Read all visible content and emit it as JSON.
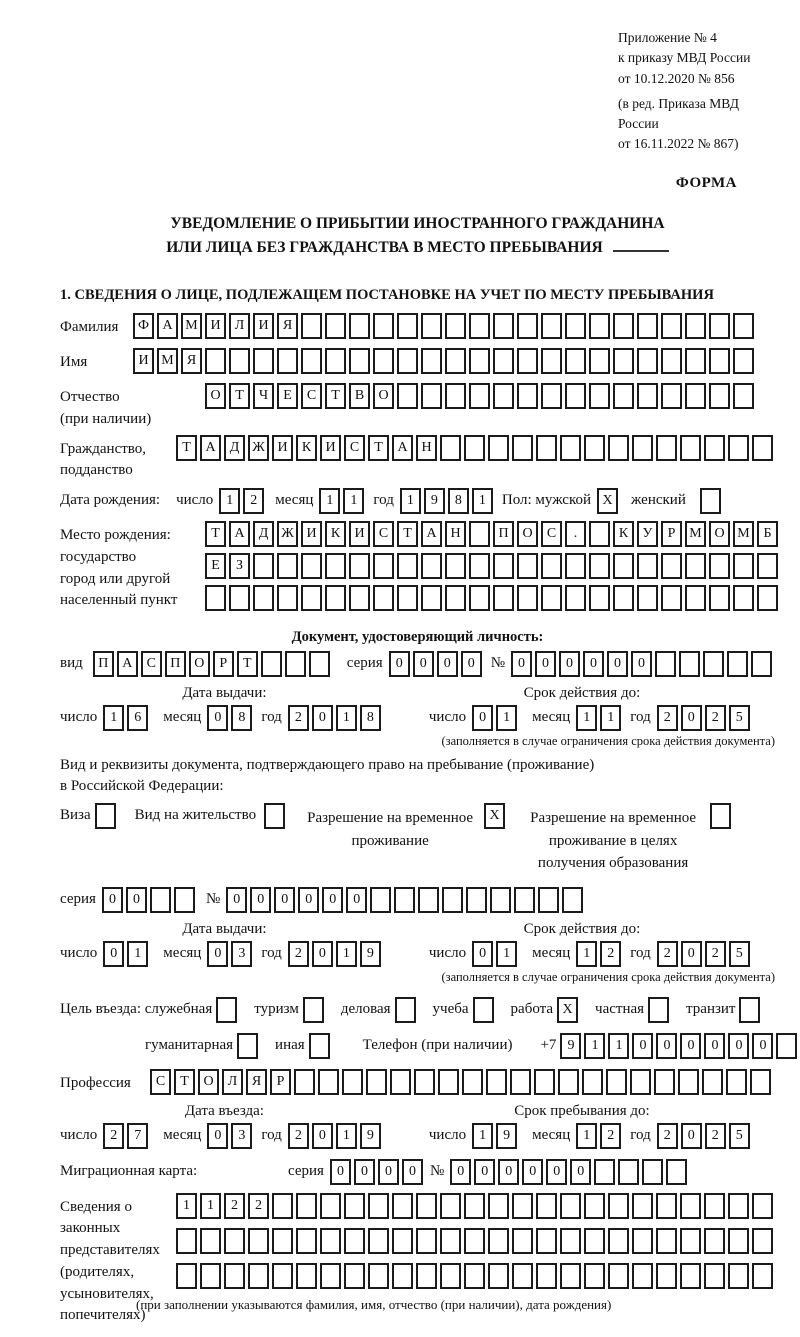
{
  "header": {
    "line1": "Приложение № 4",
    "line2": "к приказу МВД России",
    "line3": "от 10.12.2020 № 856",
    "line4": "(в ред. Приказа МВД России",
    "line5": "от 16.11.2022 № 867)",
    "form_label": "ФОРМА"
  },
  "title": {
    "line1": "УВЕДОМЛЕНИЕ О ПРИБЫТИИ ИНОСТРАННОГО ГРАЖДАНИНА",
    "line2": "ИЛИ ЛИЦА БЕЗ ГРАЖДАНСТВА В МЕСТО ПРЕБЫВАНИЯ"
  },
  "section1_heading": "1. СВЕДЕНИЯ О ЛИЦЕ, ПОДЛЕЖАЩЕМ ПОСТАНОВКЕ НА УЧЕТ ПО МЕСТУ ПРЕБЫВАНИЯ",
  "date_labels": {
    "day": "число",
    "month": "месяц",
    "year": "год"
  },
  "person": {
    "surname": {
      "label": "Фамилия",
      "cells": {
        "v": "ФАМИЛИЯ",
        "n": 26
      }
    },
    "name": {
      "label": "Имя",
      "cells": {
        "v": "ИМЯ",
        "n": 26
      }
    },
    "patronymic": {
      "label1": "Отчество",
      "label2": "(при наличии)",
      "cells": {
        "v": "ОТЧЕСТВО",
        "n": 23
      }
    },
    "citizenship": {
      "label1": "Гражданство,",
      "label2": "подданство",
      "cells": {
        "v": "ТАДЖИКИСТАН",
        "n": 25
      }
    },
    "birth_date": {
      "label": "Дата рождения:",
      "day": {
        "v": "12",
        "n": 2
      },
      "month": {
        "v": "11",
        "n": 2
      },
      "year": {
        "v": "1981",
        "n": 4
      }
    },
    "sex": {
      "label": "Пол: мужской",
      "male": {
        "v": "X",
        "n": 1
      },
      "female_label": "женский",
      "female": {
        "v": "",
        "n": 1
      }
    },
    "birth_place": {
      "label1": "Место рождения:",
      "label2": "государство",
      "label3": "город или другой",
      "label4": "населенный пункт",
      "row1": {
        "v": "ТАДЖИКИСТАН ПОС. КУРМОМБ",
        "n": 24
      },
      "row2": {
        "v": "ЕЗ",
        "n": 24
      },
      "row3": {
        "v": "",
        "n": 24
      }
    }
  },
  "identity_doc": {
    "heading": "Документ, удостоверяющий личность:",
    "kind_label": "вид",
    "kind": {
      "v": "ПАСПОРТ",
      "n": 10
    },
    "series_label": "серия",
    "series": {
      "v": "0000",
      "n": 4
    },
    "number_label": "№",
    "number": {
      "v": "000000",
      "n": 11
    },
    "issue_heading": "Дата выдачи:",
    "issue": {
      "day": {
        "v": "16",
        "n": 2
      },
      "month": {
        "v": "08",
        "n": 2
      },
      "year": {
        "v": "2018",
        "n": 4
      }
    },
    "expiry_heading": "Срок действия до:",
    "expiry": {
      "day": {
        "v": "01",
        "n": 2
      },
      "month": {
        "v": "11",
        "n": 2
      },
      "year": {
        "v": "2025",
        "n": 4
      }
    },
    "expiry_note": "(заполняется в случае ограничения срока действия документа)"
  },
  "stay_doc": {
    "intro1": "Вид и реквизиты документа, подтверждающего право на пребывание (проживание)",
    "intro2": "в Российской Федерации:",
    "visa_label": "Виза",
    "visa": {
      "v": "",
      "n": 1
    },
    "residence_permit_label": "Вид на жительство",
    "residence_permit": {
      "v": "",
      "n": 1
    },
    "temp_residence_label": "Разрешение на временное проживание",
    "temp_residence": {
      "v": "X",
      "n": 1
    },
    "temp_residence_edu_label": "Разрешение на временное проживание в целях получения образования",
    "temp_residence_edu": {
      "v": "",
      "n": 1
    },
    "series_label": "серия",
    "series": {
      "v": "00",
      "n": 4
    },
    "number_label": "№",
    "number": {
      "v": "000000",
      "n": 15
    },
    "issue_heading": "Дата выдачи:",
    "issue": {
      "day": {
        "v": "01",
        "n": 2
      },
      "month": {
        "v": "03",
        "n": 2
      },
      "year": {
        "v": "2019",
        "n": 4
      }
    },
    "expiry_heading": "Срок действия до:",
    "expiry": {
      "day": {
        "v": "01",
        "n": 2
      },
      "month": {
        "v": "12",
        "n": 2
      },
      "year": {
        "v": "2025",
        "n": 4
      }
    },
    "expiry_note": "(заполняется в случае ограничения срока действия документа)"
  },
  "visit": {
    "purpose_label": "Цель въезда: служебная",
    "purposes": [
      {
        "label": "служебная",
        "box": {
          "v": "",
          "n": 1
        }
      },
      {
        "label": "туризм",
        "box": {
          "v": "",
          "n": 1
        }
      },
      {
        "label": "деловая",
        "box": {
          "v": "",
          "n": 1
        }
      },
      {
        "label": "учеба",
        "box": {
          "v": "",
          "n": 1
        }
      },
      {
        "label": "работа",
        "box": {
          "v": "X",
          "n": 1
        }
      },
      {
        "label": "частная",
        "box": {
          "v": "",
          "n": 1
        }
      },
      {
        "label": "транзит",
        "box": {
          "v": "",
          "n": 1
        }
      },
      {
        "label": "гуманитарная",
        "box": {
          "v": "",
          "n": 1
        }
      },
      {
        "label": "иная",
        "box": {
          "v": "",
          "n": 1
        }
      }
    ],
    "phone_label": "Телефон (при наличии)",
    "phone_prefix": "+7",
    "phone": {
      "v": "911000000",
      "n": 10
    },
    "profession_label": "Профессия",
    "profession": {
      "v": "СТОЛЯР",
      "n": 26
    }
  },
  "entry": {
    "date_heading": "Дата въезда:",
    "date": {
      "day": {
        "v": "27",
        "n": 2
      },
      "month": {
        "v": "03",
        "n": 2
      },
      "year": {
        "v": "2019",
        "n": 4
      }
    },
    "stay_heading": "Срок пребывания до:",
    "stay": {
      "day": {
        "v": "19",
        "n": 2
      },
      "month": {
        "v": "12",
        "n": 2
      },
      "year": {
        "v": "2025",
        "n": 4
      }
    }
  },
  "migration_card": {
    "label": "Миграционная карта:",
    "series_label": "серия",
    "series": {
      "v": "0000",
      "n": 4
    },
    "number_label": "№",
    "number": {
      "v": "000000",
      "n": 10
    }
  },
  "representatives": {
    "label1": "Сведения о",
    "label2": "законных",
    "label3": "представителях",
    "label4": "(родителях,",
    "label5": "усыновителях,",
    "label6": "попечителях)",
    "row1": {
      "v": "1122",
      "n": 25
    },
    "row2": {
      "v": "",
      "n": 25
    },
    "row3": {
      "v": "",
      "n": 25
    },
    "note": "(при заполнении указываются фамилия, имя, отчество (при наличии), дата рождения)"
  }
}
